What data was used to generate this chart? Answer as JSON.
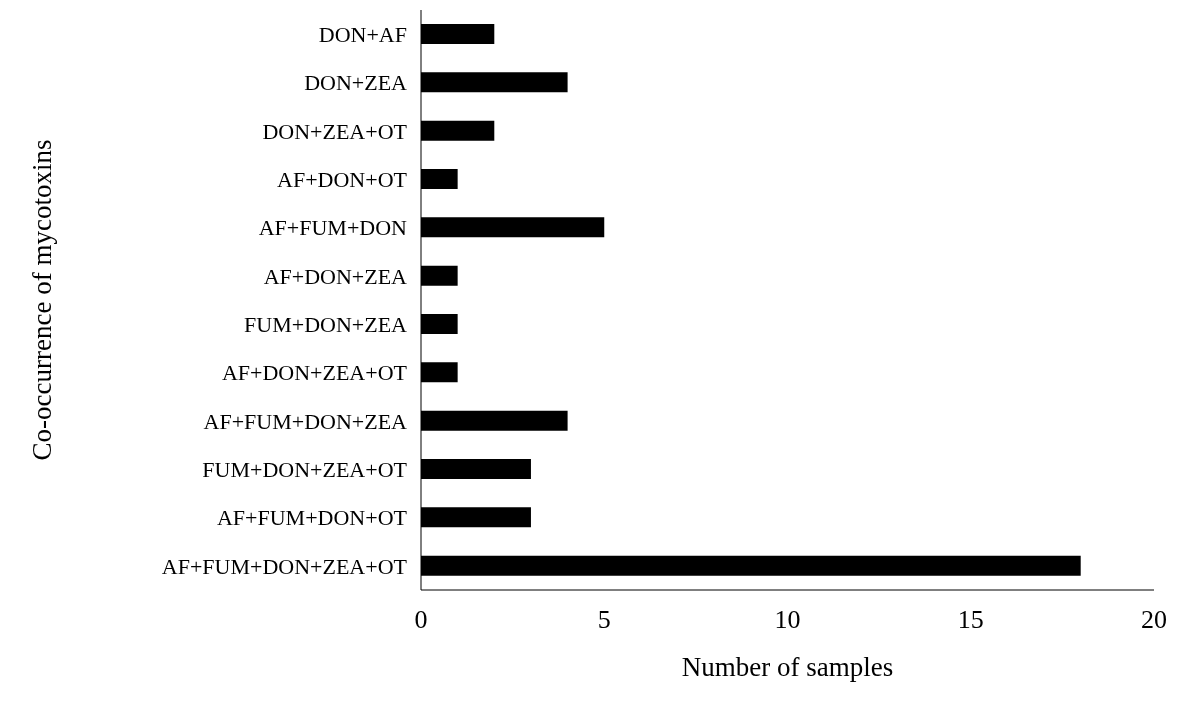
{
  "chart_data": {
    "type": "bar",
    "orientation": "horizontal",
    "xlabel": "Number of samples",
    "ylabel": "Co-occurrence of mycotoxins",
    "categories": [
      "DON+AF",
      "DON+ZEA",
      "DON+ZEA+OT",
      "AF+DON+OT",
      "AF+FUM+DON",
      "AF+DON+ZEA",
      "FUM+DON+ZEA",
      "AF+DON+ZEA+OT",
      "AF+FUM+DON+ZEA",
      "FUM+DON+ZEA+OT",
      "AF+FUM+DON+OT",
      "AF+FUM+DON+ZEA+OT"
    ],
    "values": [
      2,
      4,
      2,
      1,
      5,
      1,
      1,
      1,
      4,
      3,
      3,
      18
    ],
    "color": "#000000",
    "xlim": [
      0,
      20
    ],
    "xticks": [
      0,
      5,
      10,
      15,
      20
    ]
  }
}
